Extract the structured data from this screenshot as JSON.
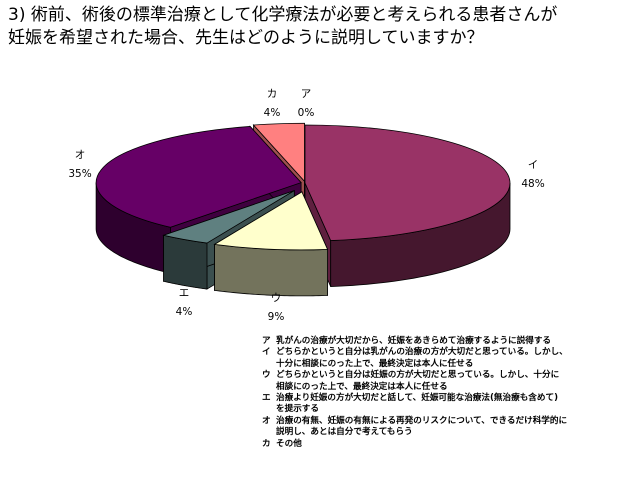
{
  "title_lines": [
    "3) 術前、術後の標準治療として化学療法が必要と考えられる患者さんが",
    "妊娠を希望された場合、先生はどのように説明していますか？"
  ],
  "chart_data": {
    "type": "pie",
    "style": "3d-exploded",
    "slices": [
      {
        "key": "ア",
        "value": 0,
        "label": "0%",
        "color": "#F08080"
      },
      {
        "key": "イ",
        "value": 48,
        "label": "48%",
        "color": "#993366"
      },
      {
        "key": "ウ",
        "value": 9,
        "label": "9%",
        "color": "#FFFFCC"
      },
      {
        "key": "エ",
        "value": 4,
        "label": "4%",
        "color": "#5F8080"
      },
      {
        "key": "オ",
        "value": 35,
        "label": "35%",
        "color": "#660066"
      },
      {
        "key": "カ",
        "value": 4,
        "label": "4%",
        "color": "#FF8080"
      }
    ],
    "legend_placement": "bottom-right"
  },
  "legend": [
    {
      "key": "ア",
      "lines": [
        "乳がんの治療が大切だから、妊娠をあきらめて治療するように説得する"
      ]
    },
    {
      "key": "イ",
      "lines": [
        "どちらかというと自分は乳がんの治療の方が大切だと思っている。しかし、",
        "十分に相談にのった上で、最終決定は本人に任せる"
      ]
    },
    {
      "key": "ウ",
      "lines": [
        "どちらかというと自分は妊娠の方が大切だと思っている。しかし、十分に",
        "相談にのった上で、最終決定は本人に任せる"
      ]
    },
    {
      "key": "エ",
      "lines": [
        "治療より妊娠の方が大切だと話して、妊娠可能な治療法(無治療も含めて)",
        "を提示する"
      ]
    },
    {
      "key": "オ",
      "lines": [
        "治療の有無、妊娠の有無による再発のリスクについて、できるだけ科学的に",
        "説明し、あとは自分で考えてもらう"
      ]
    },
    {
      "key": "カ",
      "lines": [
        "その他"
      ]
    }
  ]
}
